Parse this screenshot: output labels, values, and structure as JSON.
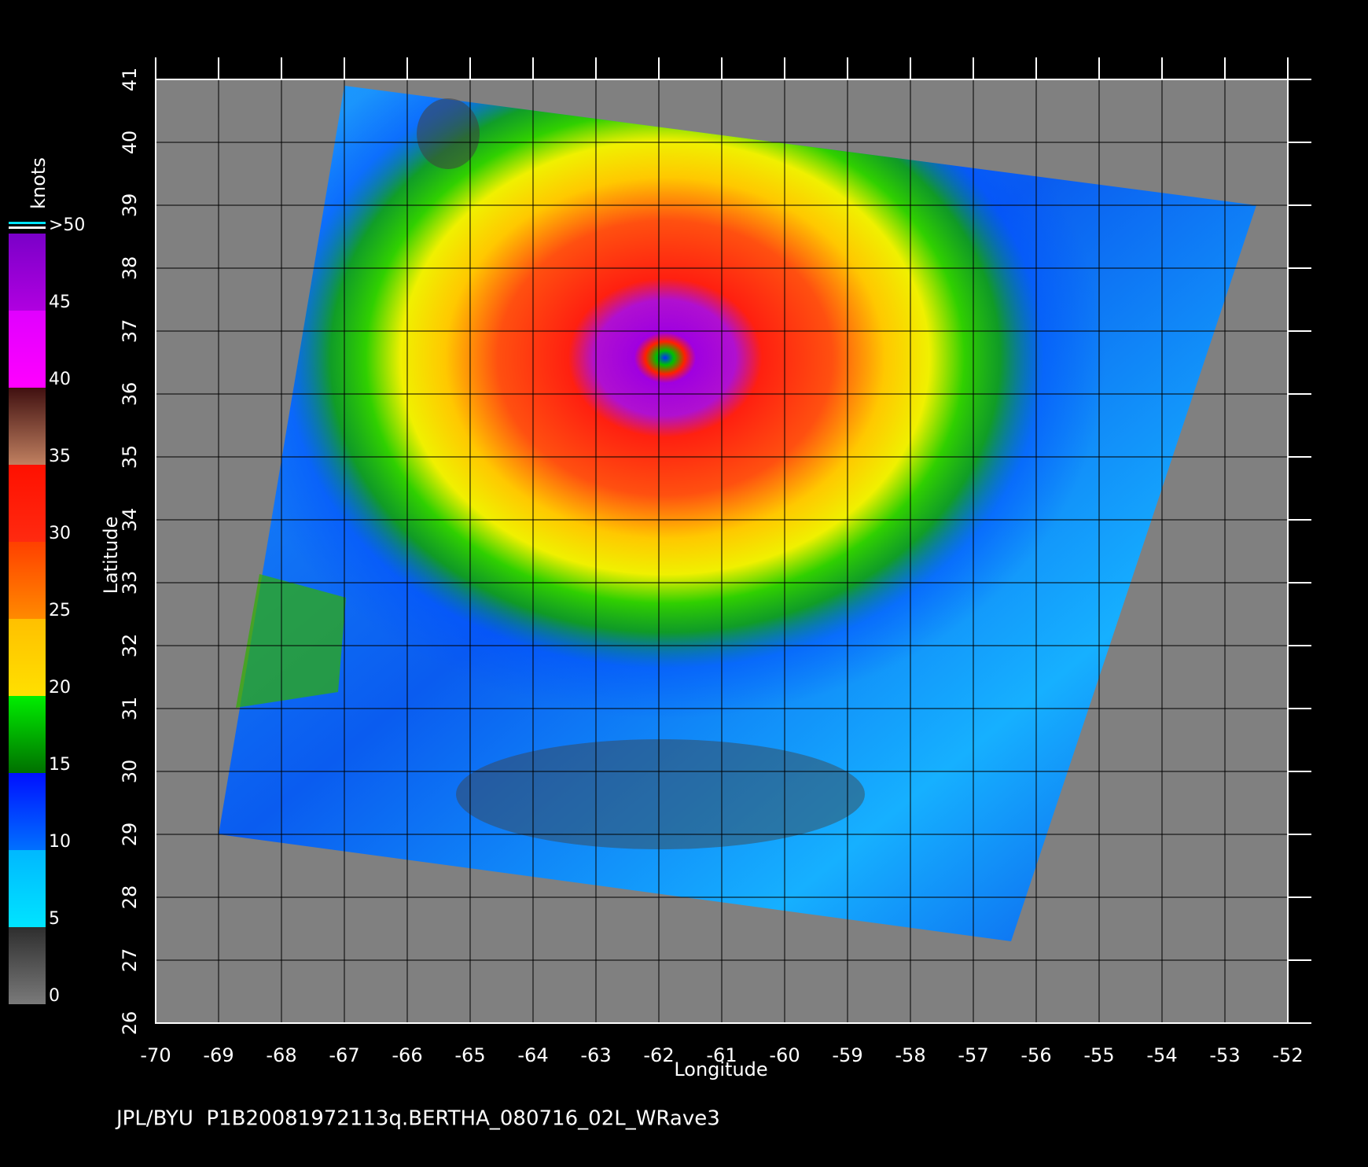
{
  "chart_data": {
    "type": "wind-map",
    "footer": "JPL/BYU  P1B20081972113q.BERTHA_080716_02L_WRave3",
    "xlabel": "Longitude",
    "ylabel": "Latitude",
    "xlim": [
      -70,
      -52
    ],
    "xticks": [
      -70,
      -69,
      -68,
      -67,
      -66,
      -65,
      -64,
      -63,
      -62,
      -61,
      -60,
      -59,
      -58,
      -57,
      -56,
      -55,
      -54,
      -53,
      -52
    ],
    "ylim": [
      26,
      41
    ],
    "yticks": [
      26,
      27,
      28,
      29,
      30,
      31,
      32,
      33,
      34,
      35,
      36,
      37,
      38,
      39,
      40,
      41
    ],
    "grid": true,
    "colorbar": {
      "label": "knots",
      "lim": [
        0,
        50
      ],
      "ticks": [
        0,
        5,
        10,
        15,
        20,
        25,
        30,
        35,
        40,
        45,
        {
          "value": 50,
          "label": ">50"
        }
      ],
      "colors": [
        [
          "#7a7a7a",
          "#2e2e2e"
        ],
        [
          "#00e4ff",
          "#00b8ff"
        ],
        [
          "#0070ff",
          "#0010ff"
        ],
        [
          "#007000",
          "#00ee00"
        ],
        [
          "#ffe000",
          "#ffc000"
        ],
        [
          "#ff8a00",
          "#ff4000"
        ],
        [
          "#ff2a10",
          "#ff1000"
        ],
        [
          "#c08060",
          "#401010"
        ],
        [
          "#ff00ff",
          "#e000ff"
        ],
        [
          "#b000e0",
          "#7a00c8"
        ]
      ]
    }
  }
}
